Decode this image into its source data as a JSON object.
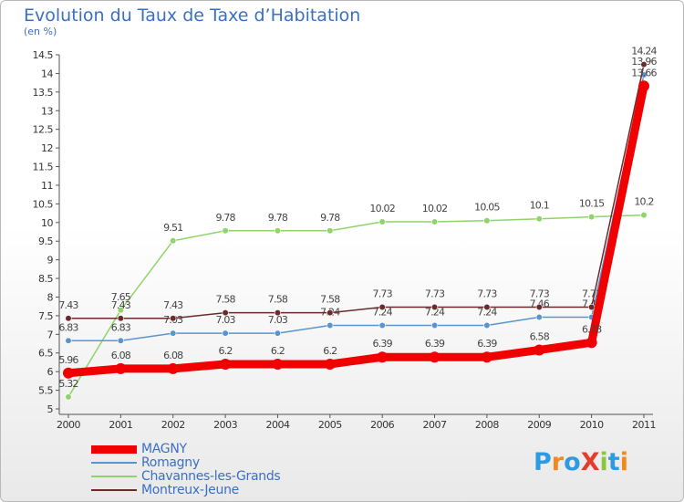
{
  "title": "Evolution du Taux de Taxe d’Habitation",
  "subtitle": "(en %)",
  "logo": {
    "text": "ProXiti",
    "colors": [
      "#2e9be0",
      "#f08a1c",
      "#2e9be0",
      "#e63c2c",
      "#8cc63f",
      "#2e9be0",
      "#f08a1c"
    ]
  },
  "chart_data": {
    "type": "line",
    "title": "Evolution du Taux de Taxe d’Habitation",
    "ylabel": "(en %)",
    "x": [
      "2000",
      "2001",
      "2002",
      "2003",
      "2004",
      "2005",
      "2006",
      "2007",
      "2008",
      "2009",
      "2010",
      "2011"
    ],
    "ylim": [
      5,
      14.5
    ],
    "yticks": [
      "5",
      "5.5",
      "6",
      "6.5",
      "7",
      "7.5",
      "8",
      "8.5",
      "9",
      "9.5",
      "10",
      "10.5",
      "11",
      "11.5",
      "12",
      "12.5",
      "13",
      "13.5",
      "14",
      "14.5"
    ],
    "grid": false,
    "legend_position": "bottom-left",
    "series": [
      {
        "name": "Chavannes-les-Grands",
        "color": "#8fd46a",
        "values": [
          5.32,
          7.65,
          9.51,
          9.78,
          9.78,
          9.78,
          10.02,
          10.02,
          10.05,
          10.1,
          10.15,
          10.2
        ],
        "labels": [
          "5.32",
          "7.65",
          "9.51",
          "9.78",
          "9.78",
          "9.78",
          "10.02",
          "10.02",
          "10.05",
          "10.1",
          "10.15",
          "10.2"
        ]
      },
      {
        "name": "Romagny",
        "color": "#5b95cf",
        "values": [
          6.83,
          6.83,
          7.03,
          7.03,
          7.03,
          7.24,
          7.24,
          7.24,
          7.24,
          7.46,
          7.46,
          13.96
        ],
        "labels": [
          "6.83",
          "6.83",
          "7.03",
          "7.03",
          "7.03",
          "7.24",
          "7.24",
          "7.24",
          "7.24",
          "7.46",
          "7.46",
          "13.96"
        ]
      },
      {
        "name": "Montreux-Jeune",
        "color": "#6b2b2b",
        "values": [
          7.43,
          7.43,
          7.43,
          7.58,
          7.58,
          7.58,
          7.73,
          7.73,
          7.73,
          7.73,
          7.73,
          14.24
        ],
        "labels": [
          "7.43",
          "7.43",
          "7.43",
          "7.58",
          "7.58",
          "7.58",
          "7.73",
          "7.73",
          "7.73",
          "7.73",
          "7.73",
          "14.24"
        ]
      },
      {
        "name": "MAGNY",
        "color": "#f00000",
        "values": [
          5.96,
          6.08,
          6.08,
          6.2,
          6.2,
          6.2,
          6.39,
          6.39,
          6.39,
          6.58,
          6.78,
          13.66
        ],
        "labels": [
          "5.96",
          "6.08",
          "6.08",
          "6.2",
          "6.2",
          "6.2",
          "6.39",
          "6.39",
          "6.39",
          "6.58",
          "6.78",
          "13.66"
        ]
      }
    ]
  }
}
